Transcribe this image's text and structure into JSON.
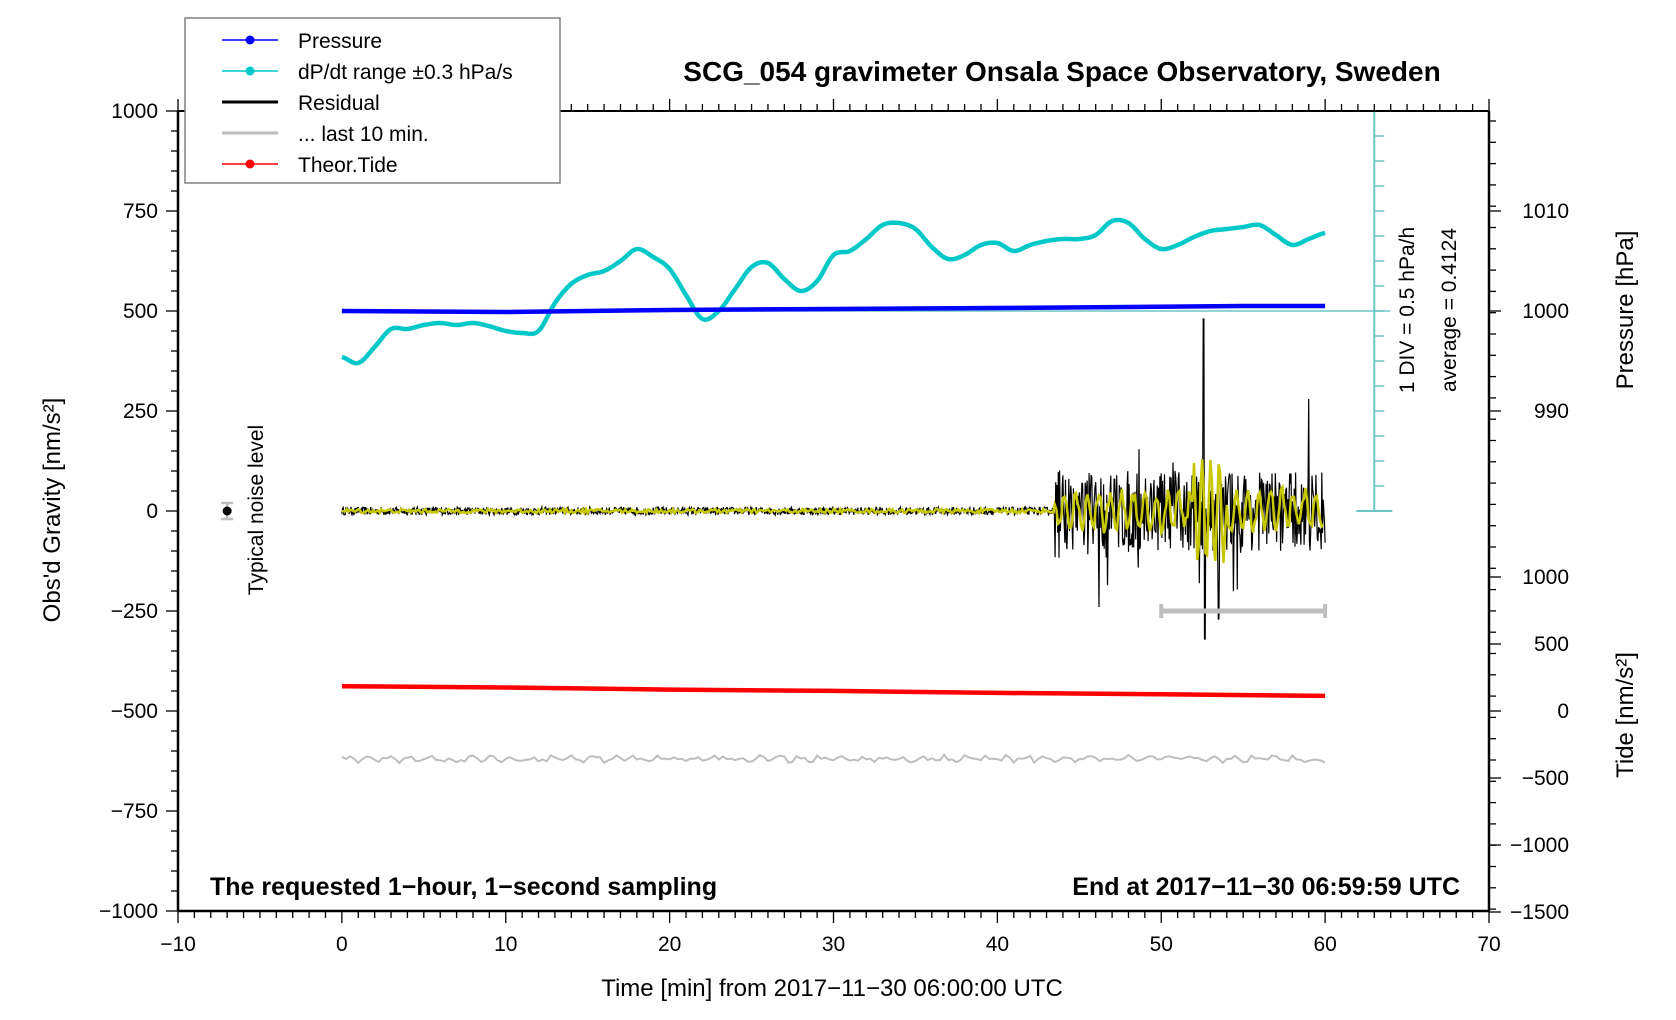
{
  "chart_data": {
    "type": "line",
    "title": "SCG_054 gravimeter Onsala Space Observatory, Sweden",
    "xlabel": "Time [min] from 2017−11−30 06:00:00 UTC",
    "ylabel": "Obs'd Gravity [nm/s²]",
    "ylabel_right_top": "Pressure [hPa]",
    "ylabel_right_bottom": "Tide [nm/s²]",
    "xlim": [
      -10,
      70
    ],
    "ylim": [
      -1000,
      1000
    ],
    "xticks": [
      -10,
      0,
      10,
      20,
      30,
      40,
      50,
      60,
      70
    ],
    "xtick_labels": [
      "−10",
      "0",
      "10",
      "20",
      "30",
      "40",
      "50",
      "60",
      "70"
    ],
    "yticks": [
      1000,
      750,
      500,
      250,
      0,
      -250,
      -500,
      -750,
      -1000
    ],
    "ytick_labels": [
      "1000",
      "750",
      "500",
      "250",
      "0",
      "−250",
      "−500",
      "−750",
      "−1000"
    ],
    "pressure_axis": {
      "ticks": [
        1010,
        1000,
        990
      ],
      "labels": [
        "1010",
        "1000",
        "990"
      ],
      "gravity_at_1000hPa": 500,
      "gravity_per_hPa": 25
    },
    "tide_axis": {
      "ticks": [
        1000,
        500,
        0,
        -500,
        -1000,
        -1500
      ],
      "labels": [
        "1000",
        "500",
        "0",
        "−500",
        "−1000",
        "−1500"
      ],
      "range": [
        -1500,
        1500
      ]
    },
    "legend": {
      "placement": "top-left",
      "entries": [
        {
          "label": "Pressure",
          "color": "#0000ff",
          "marker": true
        },
        {
          "label": "dP/dt range ±0.3 hPa/s",
          "color": "#00c8c8",
          "marker": true
        },
        {
          "label": "Residual",
          "color": "#000000",
          "marker": false
        },
        {
          "label": "... last 10 min.",
          "color": "#bebebe",
          "marker": false
        },
        {
          "label": "Theor.Tide",
          "color": "#ff0000",
          "marker": true
        }
      ]
    },
    "series": [
      {
        "name": "Pressure",
        "axis": "pressure_hPa",
        "color": "#0000ff",
        "x": [
          0,
          10,
          20,
          30,
          40,
          48,
          55,
          60
        ],
        "y": [
          1000.0,
          999.9,
          1000.1,
          1000.2,
          1000.3,
          1000.4,
          1000.5,
          1000.5
        ]
      },
      {
        "name": "dP/dt",
        "axis": "gravity",
        "color": "#00c8c8",
        "x": [
          0,
          1,
          2,
          3,
          4,
          5,
          6,
          7,
          8,
          9,
          10,
          11,
          12,
          13,
          14,
          15,
          16,
          17,
          18,
          19,
          20,
          21,
          22,
          23,
          24,
          25,
          26,
          27,
          28,
          29,
          30,
          31,
          32,
          33,
          34,
          35,
          36,
          37,
          38,
          39,
          40,
          41,
          42,
          43,
          44,
          45,
          46,
          47,
          48,
          49,
          50,
          51,
          52,
          53,
          54,
          55,
          56,
          57,
          58,
          59,
          60
        ],
        "y": [
          385,
          370,
          410,
          455,
          455,
          465,
          470,
          465,
          470,
          462,
          450,
          445,
          450,
          520,
          568,
          590,
          600,
          625,
          655,
          635,
          605,
          540,
          480,
          500,
          555,
          610,
          620,
          580,
          550,
          575,
          640,
          650,
          680,
          715,
          720,
          705,
          660,
          630,
          640,
          665,
          670,
          650,
          665,
          675,
          680,
          680,
          690,
          725,
          720,
          680,
          655,
          665,
          685,
          700,
          705,
          710,
          715,
          690,
          665,
          680,
          695
        ]
      },
      {
        "name": "Residual",
        "axis": "gravity",
        "color": "#000000",
        "description": "near-zero noise (±10) from 0 to ~43.5 min, then strong oscillations (±150) with peak +480 and trough −320 near 52.5 min",
        "x": [
          0,
          43.4,
          43.5,
          44,
          45,
          46.2,
          48,
          50,
          52,
          52.5,
          52.7,
          53.5,
          56,
          58,
          60
        ],
        "y": [
          0,
          0,
          120,
          -130,
          110,
          -240,
          170,
          120,
          130,
          480,
          -320,
          -270,
          280,
          240,
          190
        ]
      },
      {
        "name": "Residual filtered",
        "axis": "gravity",
        "color": "#c8c800",
        "description": "low-pass residual; amplitude ~±40 after 43.5 min, ±140 near 52.5 min",
        "x": [
          0,
          43.5,
          52.5,
          53,
          60
        ],
        "y": [
          0,
          40,
          140,
          -140,
          60
        ]
      },
      {
        "name": "last 10 min.",
        "axis": "gravity",
        "color": "#bebebe",
        "x": [
          50,
          60
        ],
        "y": [
          -250,
          -250
        ]
      },
      {
        "name": "Theor.Tide",
        "axis": "tide",
        "color": "#ff0000",
        "x": [
          0,
          10,
          20,
          30,
          40,
          50,
          60
        ],
        "y": [
          185,
          175,
          160,
          150,
          135,
          125,
          113
        ]
      },
      {
        "name": "Residual noise (lower trace)",
        "axis": "gravity",
        "color": "#bebebe",
        "description": "noise trace around −620 with ±12 amplitude",
        "x": [
          0,
          60
        ],
        "y": [
          -620,
          -620
        ]
      }
    ],
    "noise_marker": {
      "label": "Typical noise level",
      "x": -7,
      "y": 0,
      "err": 20
    },
    "dpdt_scale": {
      "label": "1 DIV = 0.5 hPa/h",
      "average_label": "average = 0.4124",
      "x": 63,
      "ymin": 0,
      "ymax": 1000,
      "center": 500
    },
    "annotations": {
      "left": "The requested 1−hour, 1−second sampling",
      "right": "End at 2017−11−30 06:59:59 UTC"
    }
  }
}
